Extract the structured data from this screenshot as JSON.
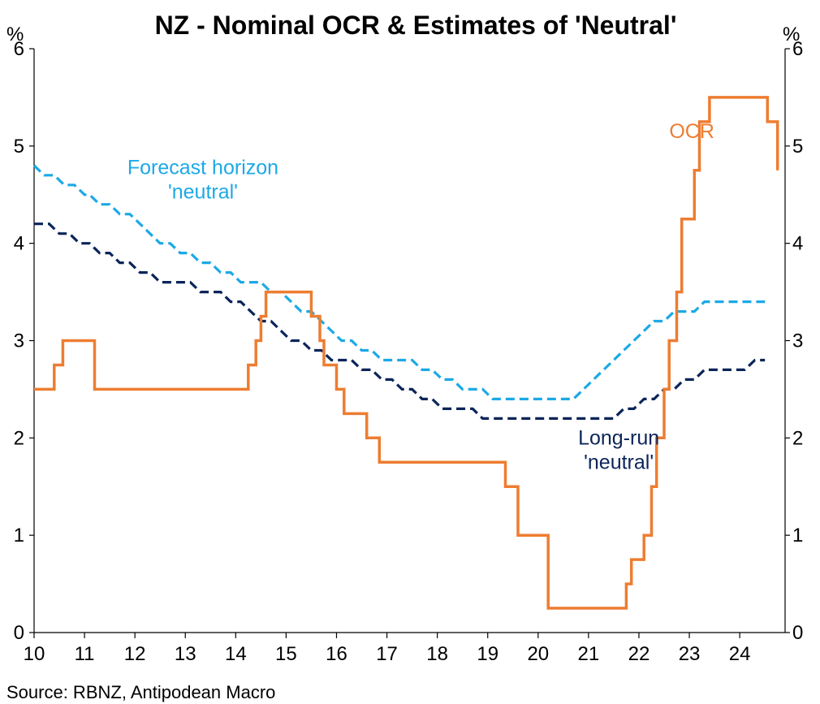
{
  "chart_data": {
    "type": "line",
    "title": "NZ - Nominal OCR & Estimates of 'Neutral'",
    "y_unit_left": "%",
    "y_unit_right": "%",
    "ylim": [
      0,
      6
    ],
    "yticks": [
      "0",
      "1",
      "2",
      "3",
      "4",
      "5",
      "6"
    ],
    "xlim": [
      10,
      24.9
    ],
    "xticks": [
      "10",
      "11",
      "12",
      "13",
      "14",
      "15",
      "16",
      "17",
      "18",
      "19",
      "20",
      "21",
      "22",
      "23",
      "24"
    ],
    "source": "Source: RBNZ, Antipodean Macro",
    "colors": {
      "ocr": "#ED7D31",
      "forecast": "#1CA9E6",
      "longrun": "#0B2559",
      "axis": "#000000"
    },
    "series": [
      {
        "name": "OCR",
        "style": "solid",
        "step": true,
        "points": [
          [
            10.0,
            2.5
          ],
          [
            10.4,
            2.75
          ],
          [
            10.57,
            3.0
          ],
          [
            11.2,
            2.5
          ],
          [
            14.25,
            2.75
          ],
          [
            14.4,
            3.0
          ],
          [
            14.5,
            3.25
          ],
          [
            14.6,
            3.5
          ],
          [
            15.5,
            3.25
          ],
          [
            15.67,
            3.0
          ],
          [
            15.75,
            2.75
          ],
          [
            16.0,
            2.5
          ],
          [
            16.15,
            2.25
          ],
          [
            16.6,
            2.0
          ],
          [
            16.85,
            1.75
          ],
          [
            19.35,
            1.5
          ],
          [
            19.6,
            1.0
          ],
          [
            20.2,
            0.25
          ],
          [
            21.75,
            0.5
          ],
          [
            21.85,
            0.75
          ],
          [
            22.1,
            1.0
          ],
          [
            22.25,
            1.5
          ],
          [
            22.35,
            2.0
          ],
          [
            22.5,
            2.5
          ],
          [
            22.6,
            3.0
          ],
          [
            22.75,
            3.5
          ],
          [
            22.85,
            4.25
          ],
          [
            23.1,
            4.75
          ],
          [
            23.2,
            5.25
          ],
          [
            23.4,
            5.5
          ],
          [
            24.55,
            5.25
          ],
          [
            24.75,
            4.75
          ],
          [
            24.75,
            4.75
          ]
        ]
      },
      {
        "name": "Forecast horizon 'neutral'",
        "style": "dashed",
        "points": [
          [
            10.0,
            4.8
          ],
          [
            10.1,
            4.75
          ],
          [
            10.2,
            4.7
          ],
          [
            10.4,
            4.7
          ],
          [
            10.6,
            4.6
          ],
          [
            10.8,
            4.6
          ],
          [
            11.0,
            4.5
          ],
          [
            11.1,
            4.5
          ],
          [
            11.3,
            4.4
          ],
          [
            11.5,
            4.4
          ],
          [
            11.7,
            4.3
          ],
          [
            11.9,
            4.3
          ],
          [
            12.1,
            4.2
          ],
          [
            12.3,
            4.1
          ],
          [
            12.5,
            4.0
          ],
          [
            12.7,
            4.0
          ],
          [
            12.9,
            3.9
          ],
          [
            13.1,
            3.9
          ],
          [
            13.3,
            3.8
          ],
          [
            13.5,
            3.8
          ],
          [
            13.7,
            3.7
          ],
          [
            13.9,
            3.7
          ],
          [
            14.1,
            3.6
          ],
          [
            14.3,
            3.6
          ],
          [
            14.5,
            3.6
          ],
          [
            14.7,
            3.5
          ],
          [
            14.9,
            3.5
          ],
          [
            15.1,
            3.4
          ],
          [
            15.3,
            3.3
          ],
          [
            15.5,
            3.3
          ],
          [
            15.7,
            3.2
          ],
          [
            15.9,
            3.1
          ],
          [
            16.1,
            3.0
          ],
          [
            16.3,
            3.0
          ],
          [
            16.5,
            2.9
          ],
          [
            16.7,
            2.9
          ],
          [
            16.9,
            2.8
          ],
          [
            17.1,
            2.8
          ],
          [
            17.3,
            2.8
          ],
          [
            17.5,
            2.8
          ],
          [
            17.7,
            2.7
          ],
          [
            17.9,
            2.7
          ],
          [
            18.1,
            2.6
          ],
          [
            18.3,
            2.6
          ],
          [
            18.5,
            2.5
          ],
          [
            18.7,
            2.5
          ],
          [
            18.9,
            2.5
          ],
          [
            19.1,
            2.4
          ],
          [
            19.3,
            2.4
          ],
          [
            19.5,
            2.4
          ],
          [
            19.7,
            2.4
          ],
          [
            19.9,
            2.4
          ],
          [
            20.1,
            2.4
          ],
          [
            20.3,
            2.4
          ],
          [
            20.5,
            2.4
          ],
          [
            20.7,
            2.4
          ],
          [
            20.9,
            2.5
          ],
          [
            21.1,
            2.6
          ],
          [
            21.3,
            2.7
          ],
          [
            21.5,
            2.8
          ],
          [
            21.7,
            2.9
          ],
          [
            21.9,
            3.0
          ],
          [
            22.1,
            3.1
          ],
          [
            22.3,
            3.2
          ],
          [
            22.5,
            3.2
          ],
          [
            22.7,
            3.3
          ],
          [
            22.9,
            3.3
          ],
          [
            23.1,
            3.3
          ],
          [
            23.3,
            3.4
          ],
          [
            23.5,
            3.4
          ],
          [
            23.7,
            3.4
          ],
          [
            23.9,
            3.4
          ],
          [
            24.1,
            3.4
          ],
          [
            24.3,
            3.4
          ],
          [
            24.5,
            3.4
          ]
        ]
      },
      {
        "name": "Long-run 'neutral'",
        "style": "dashed",
        "points": [
          [
            10.0,
            4.2
          ],
          [
            10.3,
            4.2
          ],
          [
            10.5,
            4.1
          ],
          [
            10.7,
            4.1
          ],
          [
            10.9,
            4.0
          ],
          [
            11.1,
            4.0
          ],
          [
            11.3,
            3.9
          ],
          [
            11.5,
            3.9
          ],
          [
            11.7,
            3.8
          ],
          [
            11.9,
            3.8
          ],
          [
            12.1,
            3.7
          ],
          [
            12.3,
            3.7
          ],
          [
            12.5,
            3.6
          ],
          [
            12.7,
            3.6
          ],
          [
            12.9,
            3.6
          ],
          [
            13.1,
            3.6
          ],
          [
            13.3,
            3.5
          ],
          [
            13.5,
            3.5
          ],
          [
            13.7,
            3.5
          ],
          [
            13.9,
            3.4
          ],
          [
            14.1,
            3.4
          ],
          [
            14.3,
            3.3
          ],
          [
            14.5,
            3.2
          ],
          [
            14.7,
            3.2
          ],
          [
            14.9,
            3.1
          ],
          [
            15.1,
            3.0
          ],
          [
            15.3,
            3.0
          ],
          [
            15.5,
            2.9
          ],
          [
            15.7,
            2.9
          ],
          [
            15.9,
            2.8
          ],
          [
            16.1,
            2.8
          ],
          [
            16.3,
            2.8
          ],
          [
            16.5,
            2.7
          ],
          [
            16.7,
            2.7
          ],
          [
            16.9,
            2.6
          ],
          [
            17.1,
            2.6
          ],
          [
            17.3,
            2.5
          ],
          [
            17.5,
            2.5
          ],
          [
            17.7,
            2.4
          ],
          [
            17.9,
            2.4
          ],
          [
            18.1,
            2.3
          ],
          [
            18.3,
            2.3
          ],
          [
            18.5,
            2.3
          ],
          [
            18.7,
            2.3
          ],
          [
            18.9,
            2.2
          ],
          [
            19.1,
            2.2
          ],
          [
            19.3,
            2.2
          ],
          [
            19.5,
            2.2
          ],
          [
            19.7,
            2.2
          ],
          [
            19.9,
            2.2
          ],
          [
            20.1,
            2.2
          ],
          [
            20.3,
            2.2
          ],
          [
            20.5,
            2.2
          ],
          [
            20.7,
            2.2
          ],
          [
            20.9,
            2.2
          ],
          [
            21.1,
            2.2
          ],
          [
            21.3,
            2.2
          ],
          [
            21.5,
            2.2
          ],
          [
            21.7,
            2.3
          ],
          [
            21.9,
            2.3
          ],
          [
            22.1,
            2.4
          ],
          [
            22.3,
            2.4
          ],
          [
            22.5,
            2.5
          ],
          [
            22.7,
            2.5
          ],
          [
            22.9,
            2.6
          ],
          [
            23.1,
            2.6
          ],
          [
            23.3,
            2.7
          ],
          [
            23.5,
            2.7
          ],
          [
            23.7,
            2.7
          ],
          [
            23.9,
            2.7
          ],
          [
            24.1,
            2.7
          ],
          [
            24.3,
            2.8
          ],
          [
            24.5,
            2.8
          ]
        ]
      }
    ],
    "annotations": [
      {
        "key": "ocr",
        "lines": [
          "OCR"
        ]
      },
      {
        "key": "forecast",
        "lines": [
          "Forecast horizon",
          "'neutral'"
        ]
      },
      {
        "key": "longrun",
        "lines": [
          "Long-run",
          "'neutral'"
        ]
      }
    ]
  }
}
